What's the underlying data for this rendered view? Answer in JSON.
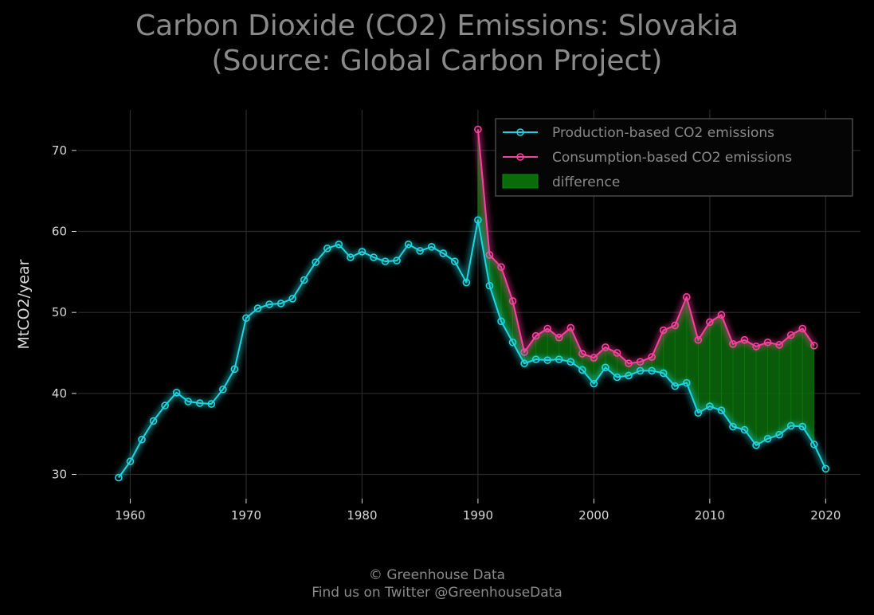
{
  "title_line1": "Carbon Dioxide (CO2) Emissions: Slovakia",
  "title_line2": "(Source: Global Carbon Project)",
  "footer_line1": "© Greenhouse Data",
  "footer_line2": "Find us on Twitter @GreenhouseData",
  "colors": {
    "production": "#1fd6e0",
    "consumption": "#ff3fa0",
    "difference": "#0a6b0a",
    "grid": "#2a2a2a",
    "text": "#8a8a8a",
    "tick": "#d8d8d8"
  },
  "chart_data": {
    "type": "line",
    "ylabel": "MtCO2/year",
    "xlim": [
      1955.5,
      2023
    ],
    "ylim": [
      27,
      75
    ],
    "xticks": [
      1960,
      1970,
      1980,
      1990,
      2000,
      2010,
      2020
    ],
    "yticks": [
      30,
      40,
      50,
      60,
      70
    ],
    "grid": true,
    "legend_position": "top-right",
    "legend": [
      "Production-based CO2 emissions",
      "Consumption-based CO2 emissions",
      "difference"
    ],
    "series": [
      {
        "name": "Production-based CO2 emissions",
        "x": [
          1959,
          1960,
          1961,
          1962,
          1963,
          1964,
          1965,
          1966,
          1967,
          1968,
          1969,
          1970,
          1971,
          1972,
          1973,
          1974,
          1975,
          1976,
          1977,
          1978,
          1979,
          1980,
          1981,
          1982,
          1983,
          1984,
          1985,
          1986,
          1987,
          1988,
          1989,
          1990,
          1991,
          1992,
          1993,
          1994,
          1995,
          1996,
          1997,
          1998,
          1999,
          2000,
          2001,
          2002,
          2003,
          2004,
          2005,
          2006,
          2007,
          2008,
          2009,
          2010,
          2011,
          2012,
          2013,
          2014,
          2015,
          2016,
          2017,
          2018,
          2019,
          2020
        ],
        "values": [
          29.6,
          31.6,
          34.3,
          36.6,
          38.5,
          40.1,
          39.0,
          38.8,
          38.7,
          40.5,
          43.0,
          49.3,
          50.5,
          51.0,
          51.1,
          51.7,
          54.0,
          56.2,
          57.9,
          58.4,
          56.8,
          57.5,
          56.8,
          56.3,
          56.4,
          58.4,
          57.6,
          58.1,
          57.3,
          56.3,
          53.7,
          61.4,
          53.3,
          48.9,
          46.3,
          43.7,
          44.2,
          44.1,
          44.2,
          43.9,
          42.9,
          41.2,
          43.2,
          42.0,
          42.2,
          42.8,
          42.8,
          42.5,
          40.9,
          41.3,
          37.6,
          38.4,
          37.9,
          35.9,
          35.5,
          33.6,
          34.4,
          34.9,
          36.0,
          35.9,
          33.7,
          30.7
        ]
      },
      {
        "name": "Consumption-based CO2 emissions",
        "x": [
          1990,
          1991,
          1992,
          1993,
          1994,
          1995,
          1996,
          1997,
          1998,
          1999,
          2000,
          2001,
          2002,
          2003,
          2004,
          2005,
          2006,
          2007,
          2008,
          2009,
          2010,
          2011,
          2012,
          2013,
          2014,
          2015,
          2016,
          2017,
          2018,
          2019
        ],
        "values": [
          72.6,
          57.1,
          55.6,
          51.4,
          45.1,
          47.1,
          48.0,
          46.9,
          48.1,
          44.9,
          44.4,
          45.7,
          45.0,
          43.7,
          43.9,
          44.5,
          47.8,
          48.4,
          51.9,
          46.6,
          48.8,
          49.7,
          46.1,
          46.6,
          45.8,
          46.3,
          46.0,
          47.2,
          48.0,
          45.9
        ]
      }
    ]
  }
}
